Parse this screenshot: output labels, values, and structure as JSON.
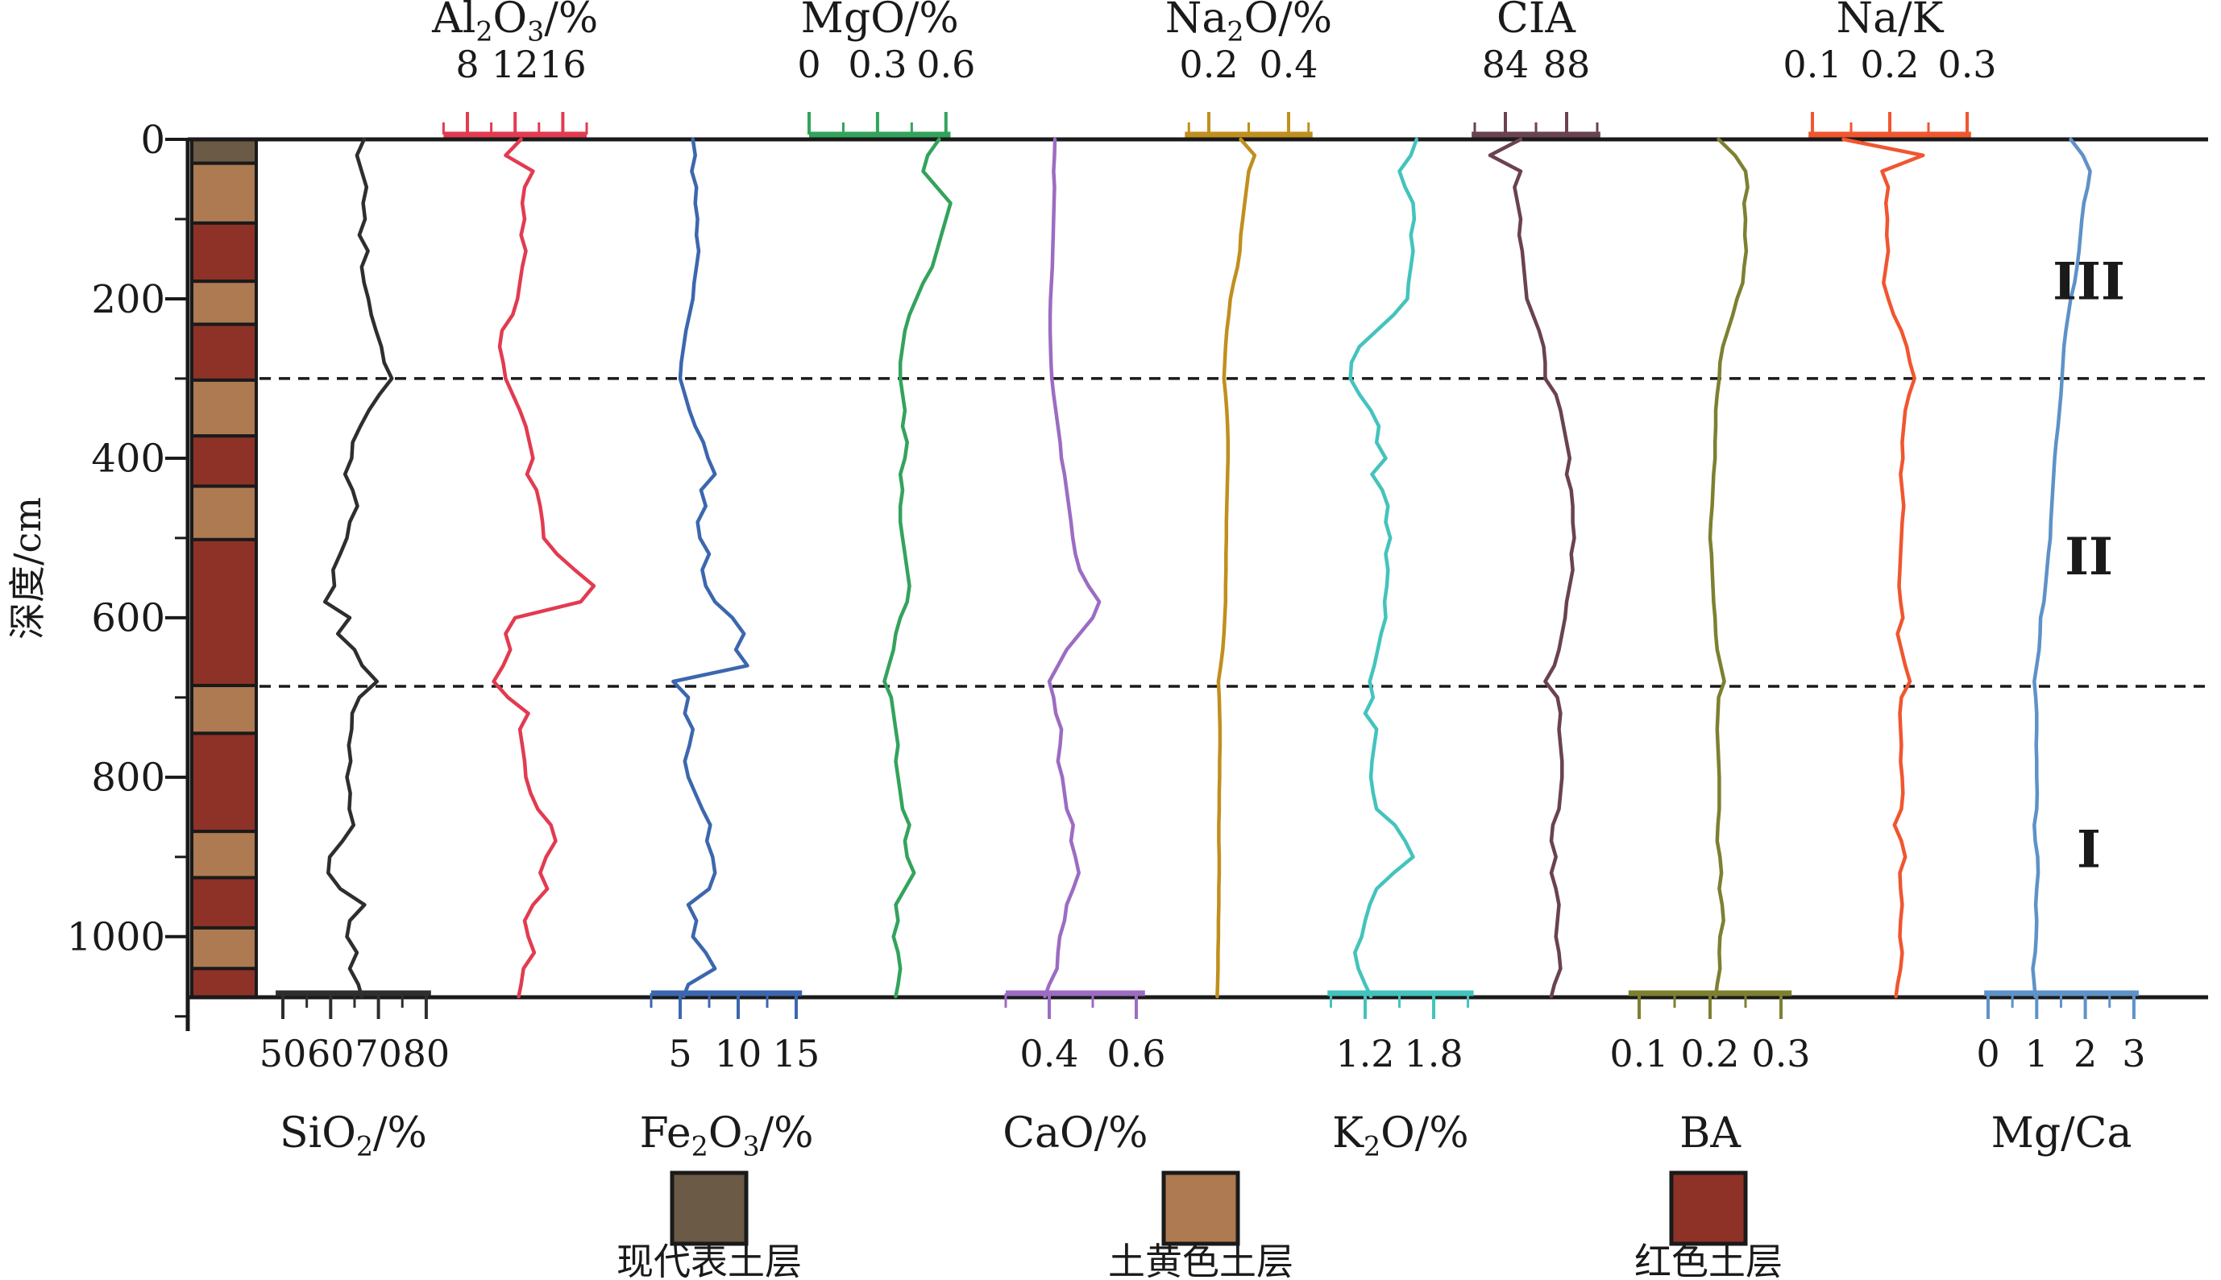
{
  "figure": {
    "depth_axis": {
      "title": "深度/cm",
      "major_ticks": [
        0,
        200,
        400,
        600,
        800,
        1000
      ],
      "minor_ticks": [
        100,
        300,
        500,
        700,
        900,
        1100
      ],
      "max_depth": 1076
    },
    "zones": [
      {
        "label": "III",
        "from": 0,
        "to": 300
      },
      {
        "label": "II",
        "from": 300,
        "to": 686
      },
      {
        "label": "I",
        "from": 686,
        "to": 1076
      }
    ],
    "zone_boundaries_cm": [
      300,
      686
    ],
    "lithology_colors": {
      "modern": "#6b5a45",
      "yellow": "#ad7a52",
      "red": "#8e3228"
    },
    "lithology_column": [
      {
        "from": 0,
        "to": 30,
        "key": "modern"
      },
      {
        "from": 30,
        "to": 105,
        "key": "yellow"
      },
      {
        "from": 105,
        "to": 178,
        "key": "red"
      },
      {
        "from": 178,
        "to": 232,
        "key": "yellow"
      },
      {
        "from": 232,
        "to": 302,
        "key": "red"
      },
      {
        "from": 302,
        "to": 372,
        "key": "yellow"
      },
      {
        "from": 372,
        "to": 435,
        "key": "red"
      },
      {
        "from": 435,
        "to": 502,
        "key": "yellow"
      },
      {
        "from": 502,
        "to": 685,
        "key": "red"
      },
      {
        "from": 685,
        "to": 745,
        "key": "yellow"
      },
      {
        "from": 745,
        "to": 868,
        "key": "red"
      },
      {
        "from": 868,
        "to": 926,
        "key": "yellow"
      },
      {
        "from": 926,
        "to": 989,
        "key": "red"
      },
      {
        "from": 989,
        "to": 1040,
        "key": "yellow"
      },
      {
        "from": 1040,
        "to": 1076,
        "key": "red"
      }
    ],
    "legend": [
      {
        "key": "modern",
        "label": "现代表土层"
      },
      {
        "key": "yellow",
        "label": "土黄色土层"
      },
      {
        "key": "red",
        "label": "红色土层"
      }
    ]
  },
  "chart_data": {
    "type": "line",
    "orientation": "vertical-depth-profile",
    "y_axis": "depth_cm",
    "depths_cm": [
      0,
      20,
      40,
      60,
      80,
      100,
      120,
      140,
      160,
      180,
      200,
      220,
      240,
      260,
      280,
      300,
      320,
      340,
      360,
      380,
      400,
      420,
      440,
      460,
      480,
      500,
      520,
      540,
      560,
      580,
      600,
      620,
      640,
      660,
      680,
      700,
      720,
      740,
      760,
      780,
      800,
      820,
      840,
      860,
      880,
      900,
      920,
      940,
      960,
      980,
      1000,
      1020,
      1040,
      1060,
      1075
    ],
    "series": [
      {
        "id": "SiO2",
        "label": "SiO₂/%",
        "color": "#2e2e2e",
        "axis_side": "bottom",
        "axis_ticks": [
          50,
          60,
          70,
          80
        ],
        "axis_minor_ticks": [
          55,
          65,
          75
        ],
        "axis_range": [
          48.5,
          81
        ],
        "values": [
          67.0,
          65.5,
          66.5,
          67.5,
          66.8,
          67.2,
          66.0,
          67.8,
          66.5,
          67.0,
          67.9,
          68.5,
          69.5,
          70.6,
          71.2,
          72.8,
          70.2,
          68.0,
          66.2,
          64.6,
          64.4,
          63.0,
          64.6,
          65.6,
          64.0,
          63.4,
          62.0,
          60.5,
          60.8,
          58.8,
          64.0,
          61.5,
          65.0,
          66.6,
          69.7,
          66.0,
          64.5,
          64.4,
          63.8,
          64.2,
          63.4,
          64.1,
          63.9,
          64.8,
          62.5,
          59.8,
          59.5,
          62.0,
          67.1,
          64.0,
          63.4,
          65.5,
          64.0,
          65.8,
          66.5
        ]
      },
      {
        "id": "Al2O3",
        "label": "Al₂O₃/%",
        "color": "#e23b50",
        "axis_side": "top",
        "axis_ticks": [
          8,
          12,
          16
        ],
        "axis_minor_ticks": [
          6,
          10,
          14,
          18
        ],
        "axis_range": [
          6,
          18
        ],
        "values": [
          12.5,
          11.2,
          13.5,
          12.8,
          12.6,
          12.8,
          12.5,
          12.9,
          12.6,
          12.4,
          12.2,
          11.8,
          10.9,
          10.7,
          11.0,
          11.2,
          11.8,
          12.4,
          12.9,
          13.2,
          13.5,
          13.0,
          13.8,
          14.1,
          14.3,
          14.4,
          15.5,
          17.0,
          18.6,
          17.5,
          12.0,
          11.2,
          11.6,
          11.0,
          10.2,
          11.4,
          13.1,
          12.4,
          12.6,
          12.8,
          12.9,
          13.3,
          13.9,
          15.0,
          15.4,
          14.6,
          14.1,
          14.7,
          13.5,
          12.8,
          13.1,
          13.6,
          12.7,
          12.5,
          12.3
        ]
      },
      {
        "id": "Fe2O3",
        "label": "Fe₂O₃/%",
        "color": "#3c67ae",
        "axis_side": "bottom",
        "axis_ticks": [
          5,
          10,
          15
        ],
        "axis_minor_ticks": [
          2.5,
          7.5,
          12.5
        ],
        "axis_range": [
          2.5,
          15.5
        ],
        "values": [
          6.1,
          6.3,
          6.0,
          6.4,
          6.3,
          6.5,
          6.4,
          6.6,
          6.4,
          6.2,
          6.1,
          5.8,
          5.5,
          5.3,
          5.1,
          5.0,
          5.4,
          5.8,
          6.3,
          7.0,
          7.4,
          8.0,
          6.8,
          7.2,
          6.5,
          6.7,
          7.5,
          6.9,
          7.2,
          8.0,
          9.5,
          10.5,
          9.8,
          10.8,
          4.4,
          5.7,
          5.4,
          6.1,
          5.8,
          5.4,
          5.7,
          6.3,
          6.9,
          7.6,
          7.3,
          7.8,
          8.0,
          7.5,
          5.7,
          6.4,
          6.1,
          7.2,
          8.0,
          5.7,
          5.3
        ]
      },
      {
        "id": "MgO",
        "label": "MgO/%",
        "color": "#33a35c",
        "axis_side": "top",
        "axis_ticks": [
          0,
          0.3,
          0.6
        ],
        "axis_minor_ticks": [
          0.15,
          0.45
        ],
        "axis_range": [
          0,
          0.62
        ],
        "values": [
          0.57,
          0.52,
          0.5,
          0.56,
          0.62,
          0.6,
          0.58,
          0.56,
          0.54,
          0.5,
          0.47,
          0.44,
          0.42,
          0.41,
          0.4,
          0.4,
          0.41,
          0.42,
          0.41,
          0.43,
          0.42,
          0.4,
          0.41,
          0.4,
          0.4,
          0.41,
          0.42,
          0.43,
          0.44,
          0.43,
          0.4,
          0.38,
          0.37,
          0.35,
          0.33,
          0.36,
          0.37,
          0.38,
          0.39,
          0.38,
          0.39,
          0.4,
          0.41,
          0.44,
          0.42,
          0.43,
          0.46,
          0.42,
          0.38,
          0.39,
          0.37,
          0.39,
          0.4,
          0.39,
          0.38
        ]
      },
      {
        "id": "CaO",
        "label": "CaO/%",
        "color": "#9c6cc3",
        "axis_side": "bottom",
        "axis_ticks": [
          0.4,
          0.6
        ],
        "axis_minor_ticks": [
          0.3,
          0.5
        ],
        "axis_range": [
          0.3,
          0.62
        ],
        "values": [
          0.413,
          0.412,
          0.41,
          0.412,
          0.411,
          0.41,
          0.409,
          0.408,
          0.407,
          0.405,
          0.403,
          0.402,
          0.402,
          0.403,
          0.404,
          0.406,
          0.41,
          0.415,
          0.42,
          0.425,
          0.428,
          0.435,
          0.44,
          0.445,
          0.45,
          0.454,
          0.46,
          0.47,
          0.49,
          0.515,
          0.5,
          0.47,
          0.44,
          0.42,
          0.4,
          0.41,
          0.415,
          0.428,
          0.425,
          0.42,
          0.43,
          0.435,
          0.44,
          0.455,
          0.45,
          0.46,
          0.468,
          0.455,
          0.44,
          0.435,
          0.424,
          0.42,
          0.418,
          0.4,
          0.39
        ]
      },
      {
        "id": "Na2O",
        "label": "Na₂O/%",
        "color": "#c08f1f",
        "axis_side": "top",
        "axis_ticks": [
          0.2,
          0.4
        ],
        "axis_minor_ticks": [
          0.15,
          0.3,
          0.45
        ],
        "axis_range": [
          0.14,
          0.46
        ],
        "values": [
          0.28,
          0.315,
          0.3,
          0.295,
          0.29,
          0.285,
          0.28,
          0.278,
          0.272,
          0.262,
          0.254,
          0.25,
          0.245,
          0.242,
          0.24,
          0.238,
          0.242,
          0.245,
          0.247,
          0.248,
          0.248,
          0.247,
          0.246,
          0.245,
          0.244,
          0.244,
          0.243,
          0.243,
          0.242,
          0.242,
          0.24,
          0.238,
          0.235,
          0.23,
          0.224,
          0.226,
          0.227,
          0.228,
          0.228,
          0.227,
          0.227,
          0.226,
          0.226,
          0.225,
          0.225,
          0.226,
          0.226,
          0.225,
          0.225,
          0.224,
          0.224,
          0.223,
          0.223,
          0.222,
          0.221
        ]
      },
      {
        "id": "K2O",
        "label": "K₂O/%",
        "color": "#44c3bd",
        "axis_side": "bottom",
        "axis_ticks": [
          1.2,
          1.8
        ],
        "axis_minor_ticks": [
          0.9,
          1.5,
          2.1
        ],
        "axis_range": [
          0.87,
          2.15
        ],
        "values": [
          1.65,
          1.6,
          1.5,
          1.55,
          1.62,
          1.63,
          1.6,
          1.62,
          1.6,
          1.58,
          1.57,
          1.45,
          1.3,
          1.15,
          1.08,
          1.07,
          1.15,
          1.25,
          1.32,
          1.3,
          1.38,
          1.26,
          1.35,
          1.4,
          1.38,
          1.42,
          1.38,
          1.4,
          1.39,
          1.37,
          1.38,
          1.34,
          1.31,
          1.28,
          1.24,
          1.27,
          1.2,
          1.3,
          1.28,
          1.26,
          1.25,
          1.27,
          1.3,
          1.46,
          1.55,
          1.62,
          1.45,
          1.3,
          1.24,
          1.2,
          1.17,
          1.11,
          1.14,
          1.2,
          1.25
        ]
      },
      {
        "id": "CIA",
        "label": "CIA",
        "color": "#6a4250",
        "axis_side": "top",
        "axis_ticks": [
          84,
          88
        ],
        "axis_minor_ticks": [
          82,
          86,
          90
        ],
        "axis_range": [
          81.8,
          90.2
        ],
        "values": [
          85.0,
          83.0,
          85.0,
          84.6,
          84.8,
          85.0,
          84.9,
          85.1,
          85.2,
          85.3,
          85.4,
          85.8,
          86.2,
          86.5,
          86.6,
          86.6,
          87.3,
          87.6,
          87.8,
          88.0,
          88.2,
          88.0,
          88.3,
          88.4,
          88.4,
          88.5,
          88.3,
          88.4,
          88.2,
          88.0,
          87.9,
          87.7,
          87.5,
          87.2,
          86.6,
          87.4,
          87.6,
          87.5,
          87.6,
          87.7,
          87.7,
          87.6,
          87.5,
          87.1,
          87.0,
          87.3,
          87.0,
          87.3,
          87.5,
          87.4,
          87.3,
          87.5,
          87.6,
          87.2,
          87.0
        ]
      },
      {
        "id": "BA",
        "label": "BA",
        "color": "#7d8030",
        "axis_side": "bottom",
        "axis_ticks": [
          0.1,
          0.2,
          0.3
        ],
        "axis_minor_ticks": [
          0.15,
          0.25
        ],
        "axis_range": [
          0.085,
          0.315
        ],
        "values": [
          0.212,
          0.235,
          0.25,
          0.253,
          0.248,
          0.25,
          0.249,
          0.251,
          0.248,
          0.246,
          0.238,
          0.232,
          0.225,
          0.218,
          0.214,
          0.213,
          0.21,
          0.208,
          0.208,
          0.207,
          0.207,
          0.205,
          0.204,
          0.203,
          0.201,
          0.2,
          0.202,
          0.203,
          0.204,
          0.205,
          0.207,
          0.208,
          0.21,
          0.215,
          0.22,
          0.212,
          0.211,
          0.21,
          0.211,
          0.212,
          0.213,
          0.213,
          0.213,
          0.211,
          0.21,
          0.214,
          0.216,
          0.213,
          0.217,
          0.219,
          0.214,
          0.213,
          0.214,
          0.21,
          0.208
        ]
      },
      {
        "id": "NaK",
        "label": "Na/K",
        "color": "#f0562f",
        "axis_side": "top",
        "axis_ticks": [
          0.1,
          0.2,
          0.3
        ],
        "axis_minor_ticks": [
          0.15,
          0.25
        ],
        "axis_range": [
          0.095,
          0.305
        ],
        "values": [
          0.14,
          0.243,
          0.19,
          0.198,
          0.195,
          0.197,
          0.196,
          0.198,
          0.195,
          0.192,
          0.198,
          0.205,
          0.215,
          0.222,
          0.226,
          0.232,
          0.225,
          0.22,
          0.218,
          0.216,
          0.217,
          0.214,
          0.216,
          0.218,
          0.216,
          0.215,
          0.214,
          0.213,
          0.212,
          0.214,
          0.217,
          0.21,
          0.215,
          0.22,
          0.226,
          0.215,
          0.213,
          0.214,
          0.215,
          0.214,
          0.216,
          0.217,
          0.215,
          0.206,
          0.215,
          0.22,
          0.213,
          0.214,
          0.216,
          0.214,
          0.213,
          0.216,
          0.214,
          0.21,
          0.208
        ]
      },
      {
        "id": "MgCa",
        "label": "Mg/Ca",
        "color": "#5e92c8",
        "axis_side": "bottom",
        "axis_ticks": [
          0,
          1,
          2,
          3
        ],
        "axis_minor_ticks": [
          0.5,
          1.5,
          2.5
        ],
        "axis_range": [
          -0.08,
          3.1
        ],
        "values": [
          1.7,
          1.95,
          2.1,
          2.05,
          1.97,
          1.93,
          1.9,
          1.87,
          1.83,
          1.78,
          1.7,
          1.65,
          1.6,
          1.56,
          1.54,
          1.52,
          1.5,
          1.47,
          1.44,
          1.4,
          1.37,
          1.35,
          1.33,
          1.31,
          1.29,
          1.28,
          1.24,
          1.21,
          1.18,
          1.15,
          1.08,
          1.07,
          1.05,
          1.0,
          0.95,
          0.98,
          1.0,
          1.0,
          0.99,
          1.0,
          1.0,
          1.01,
          1.0,
          0.95,
          0.97,
          1.02,
          1.03,
          1.0,
          0.98,
          1.0,
          0.99,
          0.97,
          0.92,
          0.95,
          0.97
        ]
      }
    ]
  }
}
